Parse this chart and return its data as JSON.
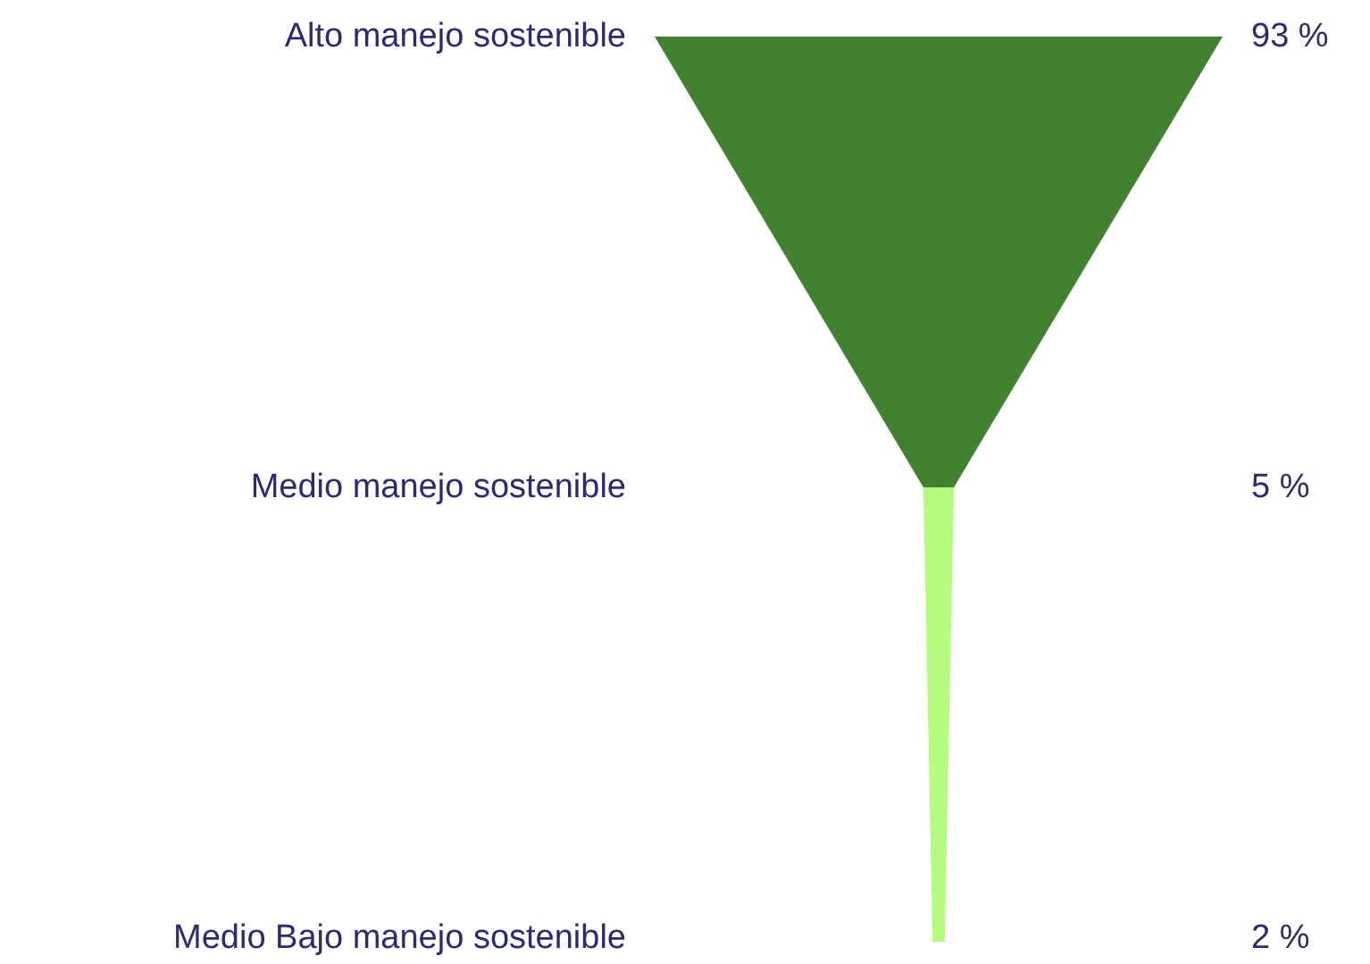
{
  "chart_data": {
    "type": "other",
    "categories": [
      "Alto manejo sostenible",
      "Medio manejo sostenible",
      "Medio Bajo manejo sostenible"
    ],
    "values": [
      93,
      5,
      2
    ],
    "value_labels": [
      "93 %",
      "5 %",
      "2 %"
    ],
    "colors": [
      "#41812f",
      "#b5fb7f",
      "#b5fb7f"
    ]
  }
}
